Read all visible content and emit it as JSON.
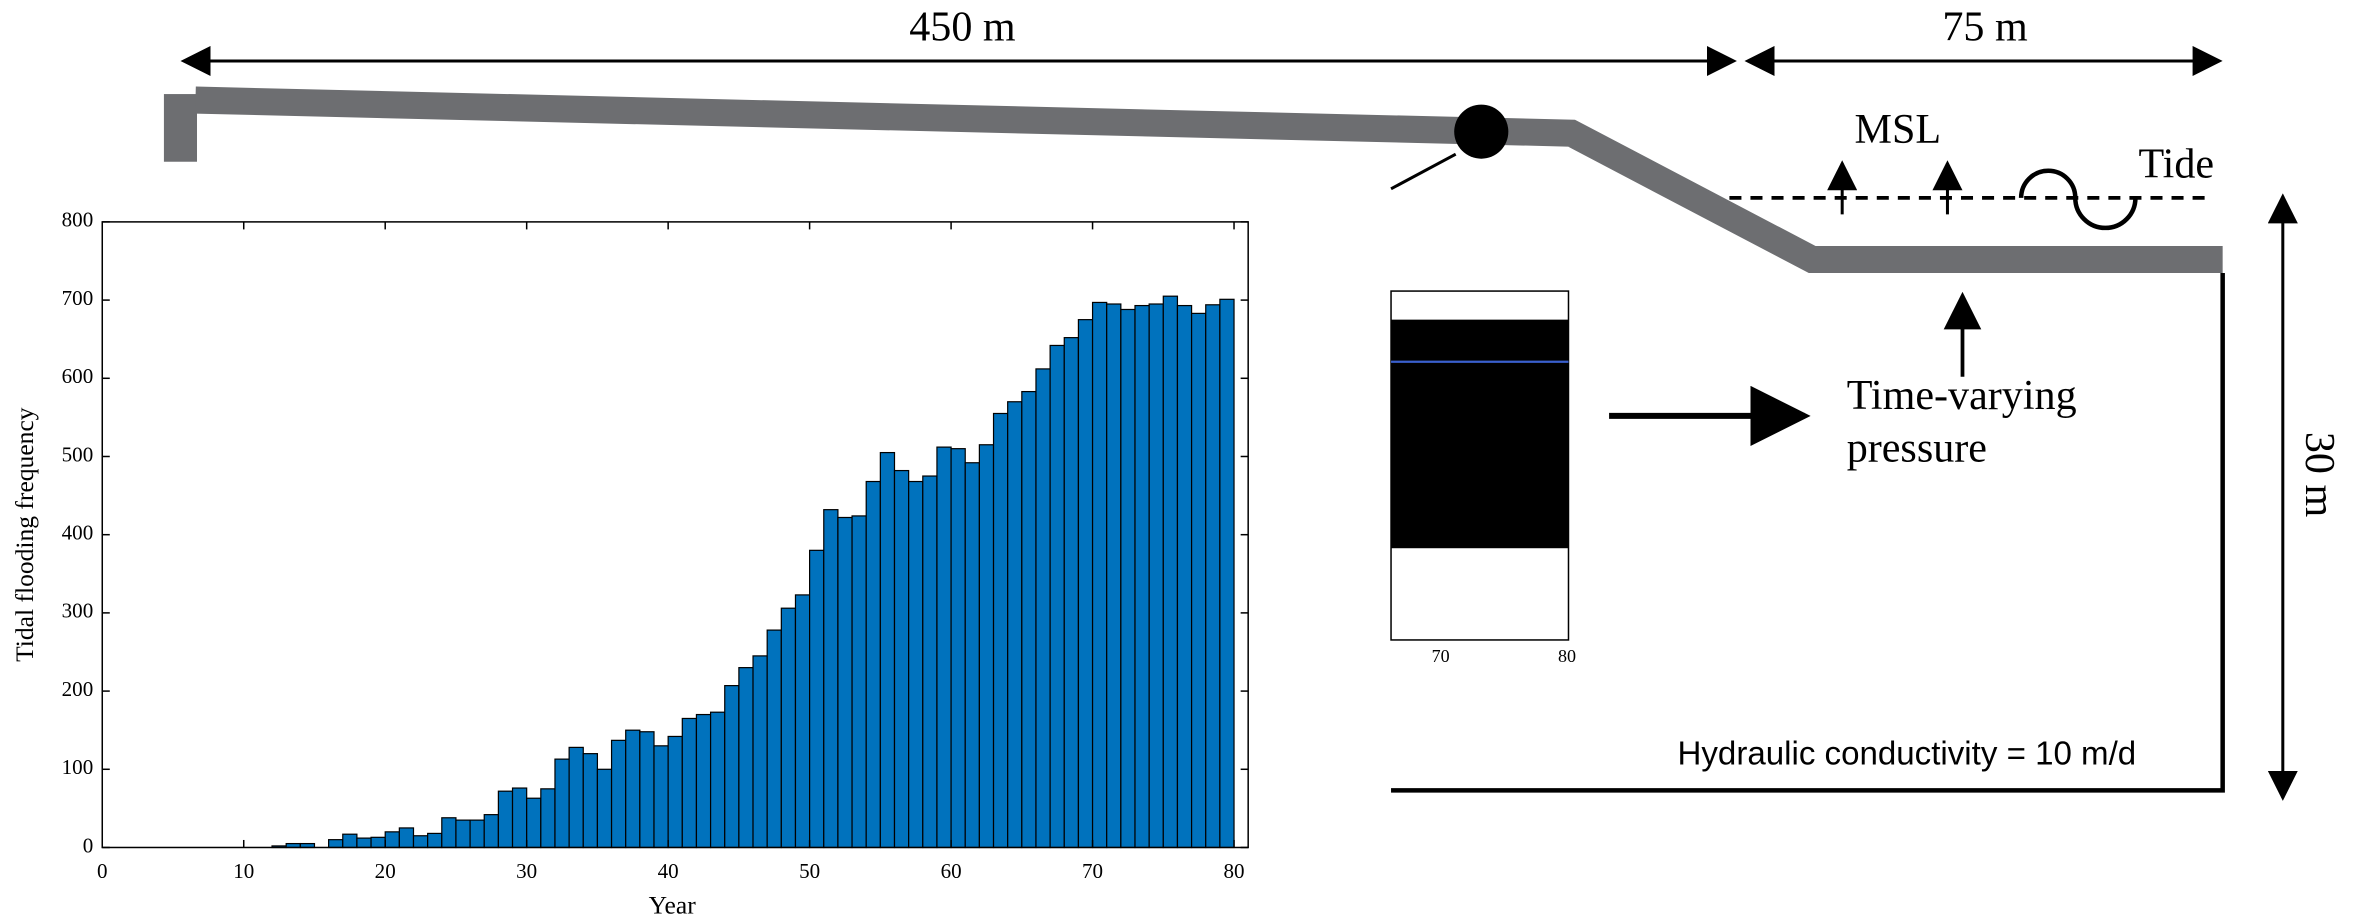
{
  "diagram": {
    "length_main": "450 m",
    "length_sea": "75 m",
    "msl": "MSL",
    "tide": "Tide",
    "pressure_label": [
      "Time-varying",
      "pressure"
    ],
    "depth": "30 m",
    "conductivity": "Hydraulic conductivity = 10 m/d",
    "inset_xticks": [
      70,
      80
    ]
  },
  "chart_data": {
    "type": "histogram",
    "xlabel": "Year",
    "ylabel": "Tidal flooding frequency",
    "color": "#0072bd",
    "bins": [
      12,
      13,
      14,
      15,
      16,
      17,
      18,
      19,
      20,
      21,
      22,
      23,
      24,
      25,
      26,
      27,
      28,
      29,
      30,
      31,
      32,
      33,
      34,
      35,
      36,
      37,
      38,
      39,
      40,
      41,
      42,
      43,
      44,
      45,
      46,
      47,
      48,
      49,
      50,
      51,
      52,
      53,
      54,
      55,
      56,
      57,
      58,
      59,
      60,
      61,
      62,
      63,
      64,
      65,
      66,
      67,
      68,
      69,
      70,
      71,
      72,
      73,
      74,
      75,
      76,
      77,
      78,
      79,
      80
    ],
    "counts": [
      2,
      5,
      5,
      0,
      10,
      17,
      12,
      13,
      20,
      25,
      15,
      18,
      38,
      35,
      35,
      42,
      72,
      76,
      63,
      75,
      113,
      128,
      120,
      100,
      137,
      150,
      148,
      130,
      142,
      165,
      170,
      173,
      207,
      230,
      245,
      278,
      306,
      323,
      380,
      432,
      422,
      424,
      468,
      505,
      482,
      468,
      475,
      512,
      510,
      492,
      515,
      555,
      570,
      583,
      612,
      642,
      652,
      675,
      697,
      695,
      688,
      693,
      695,
      705,
      693,
      683,
      694,
      701
    ],
    "xlim": [
      0,
      81
    ],
    "ylim": [
      0,
      800
    ],
    "xticks": [
      0,
      10,
      20,
      30,
      40,
      50,
      60,
      70,
      80
    ],
    "yticks": [
      0,
      100,
      200,
      300,
      400,
      500,
      600,
      700,
      800
    ]
  }
}
